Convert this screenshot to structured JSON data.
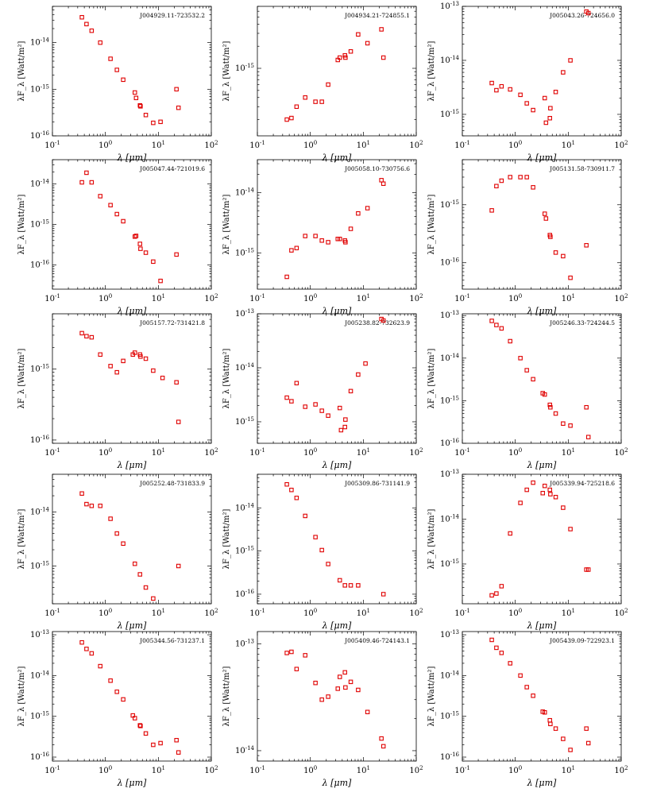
{
  "chart_data": [
    {
      "type": "scatter",
      "title": "J004929.11-723532.2",
      "xlabel": "λ [μm]",
      "ylabel": "λF_λ [Watt/m²]",
      "xscale": "log",
      "yscale": "log",
      "xlim": [
        0.1,
        100
      ],
      "ylim": [
        1e-16,
        6e-14
      ],
      "x": [
        0.36,
        0.44,
        0.55,
        0.8,
        1.25,
        1.65,
        2.17,
        3.6,
        3.8,
        4.5,
        4.6,
        5.8,
        8.0,
        11.0,
        22.0,
        24.0
      ],
      "y": [
        3.5e-14,
        2.5e-14,
        1.8e-14,
        1e-14,
        4.5e-15,
        2.6e-15,
        1.6e-15,
        8.5e-16,
        6.5e-16,
        4.5e-16,
        4.3e-16,
        2.8e-16,
        1.9e-16,
        2e-16,
        1e-15,
        4e-16
      ]
    },
    {
      "type": "scatter",
      "title": "J004934.21-724855.1",
      "xlabel": "λ [μm]",
      "ylabel": "λF_λ [Watt/m²]",
      "xscale": "log",
      "yscale": "log",
      "xlim": [
        0.1,
        100
      ],
      "ylim": [
        1.2e-16,
        7e-15
      ],
      "x": [
        0.36,
        0.44,
        0.55,
        0.8,
        1.25,
        1.65,
        2.17,
        3.3,
        3.6,
        4.5,
        4.6,
        5.8,
        8.0,
        12.0,
        22.0,
        24.0
      ],
      "y": [
        2e-16,
        2.1e-16,
        3e-16,
        4e-16,
        3.5e-16,
        3.5e-16,
        6e-16,
        1.3e-15,
        1.4e-15,
        1.5e-15,
        1.4e-15,
        1.7e-15,
        2.9e-15,
        2.2e-15,
        3.4e-15,
        1.4e-15
      ]
    },
    {
      "type": "scatter",
      "title": "J005043.26-724656.0",
      "xlabel": "λ [μm]",
      "ylabel": "λF_λ [Watt/m²]",
      "xscale": "log",
      "yscale": "log",
      "xlim": [
        0.1,
        100
      ],
      "ylim": [
        4e-16,
        1e-13
      ],
      "x": [
        0.36,
        0.44,
        0.55,
        0.8,
        1.25,
        1.65,
        2.17,
        3.6,
        3.8,
        4.5,
        4.6,
        5.8,
        8.0,
        11.0,
        22.0,
        24.0
      ],
      "y": [
        3.8e-15,
        2.8e-15,
        3.3e-15,
        2.9e-15,
        2.3e-15,
        1.6e-15,
        1.2e-15,
        2e-15,
        7e-16,
        8.5e-16,
        1.3e-15,
        2.6e-15,
        6e-15,
        1e-14,
        8e-14,
        7.5e-14
      ]
    },
    {
      "type": "scatter",
      "title": "J005047.44-721019.6",
      "xlabel": "λ [μm]",
      "ylabel": "λF_λ [Watt/m²]",
      "xscale": "log",
      "yscale": "log",
      "xlim": [
        0.1,
        100
      ],
      "ylim": [
        2.5e-17,
        4e-14
      ],
      "x": [
        0.36,
        0.44,
        0.55,
        0.8,
        1.25,
        1.65,
        2.17,
        3.6,
        3.8,
        4.5,
        4.6,
        5.8,
        8.0,
        11.0,
        22.0
      ],
      "y": [
        1.1e-14,
        1.9e-14,
        1.1e-14,
        5e-15,
        3e-15,
        1.8e-15,
        1.2e-15,
        5e-16,
        5.2e-16,
        3.3e-16,
        2.5e-16,
        2e-16,
        1.2e-16,
        4e-17,
        1.8e-16
      ]
    },
    {
      "type": "scatter",
      "title": "J005058.10-730756.6",
      "xlabel": "λ [μm]",
      "ylabel": "λF_λ [Watt/m²]",
      "xscale": "log",
      "yscale": "log",
      "xlim": [
        0.1,
        100
      ],
      "ylim": [
        2.5e-16,
        3.5e-14
      ],
      "x": [
        0.36,
        0.44,
        0.55,
        0.8,
        1.25,
        1.65,
        2.17,
        3.3,
        3.6,
        4.5,
        4.6,
        5.8,
        8.0,
        12.0,
        22.0,
        24.0
      ],
      "y": [
        4e-16,
        1.1e-15,
        1.2e-15,
        1.9e-15,
        1.9e-15,
        1.6e-15,
        1.5e-15,
        1.7e-15,
        1.7e-15,
        1.6e-15,
        1.5e-15,
        2.5e-15,
        4.5e-15,
        5.5e-15,
        1.6e-14,
        1.4e-14
      ]
    },
    {
      "type": "scatter",
      "title": "J005131.58-730911.7",
      "xlabel": "λ [μm]",
      "ylabel": "λF_λ [Watt/m²]",
      "xscale": "log",
      "yscale": "log",
      "xlim": [
        0.1,
        100
      ],
      "ylim": [
        3.5e-17,
        6e-15
      ],
      "x": [
        0.36,
        0.44,
        0.55,
        0.8,
        1.25,
        1.65,
        2.17,
        3.6,
        3.8,
        4.5,
        4.6,
        5.8,
        8.0,
        11.0,
        22.0
      ],
      "y": [
        8e-16,
        2.1e-15,
        2.6e-15,
        3e-15,
        3e-15,
        3e-15,
        2e-15,
        7e-16,
        5.8e-16,
        3e-16,
        2.8e-16,
        1.5e-16,
        1.3e-16,
        5.5e-17,
        2e-16
      ]
    },
    {
      "type": "scatter",
      "title": "J005157.72-731421.8",
      "xlabel": "λ [μm]",
      "ylabel": "λF_λ [Watt/m²]",
      "xscale": "log",
      "yscale": "log",
      "xlim": [
        0.1,
        100
      ],
      "ylim": [
        9e-17,
        6e-15
      ],
      "x": [
        0.36,
        0.44,
        0.55,
        0.8,
        1.25,
        1.65,
        2.17,
        3.3,
        3.6,
        4.5,
        4.6,
        5.8,
        8.0,
        12.0,
        22.0,
        24.0
      ],
      "y": [
        3.2e-15,
        2.9e-15,
        2.8e-15,
        1.6e-15,
        1.1e-15,
        9e-16,
        1.3e-15,
        1.6e-15,
        1.7e-15,
        1.6e-15,
        1.5e-15,
        1.4e-15,
        9.5e-16,
        7.5e-16,
        6.5e-16,
        1.8e-16
      ]
    },
    {
      "type": "scatter",
      "title": "J005238.82-732623.9",
      "xlabel": "λ [μm]",
      "ylabel": "λF_λ [Watt/m²]",
      "xscale": "log",
      "yscale": "log",
      "xlim": [
        0.1,
        100
      ],
      "ylim": [
        4e-16,
        1e-13
      ],
      "x": [
        0.36,
        0.44,
        0.55,
        0.8,
        1.25,
        1.65,
        2.17,
        3.6,
        3.8,
        4.5,
        4.6,
        5.8,
        8.0,
        11.0,
        22.0,
        24.0
      ],
      "y": [
        2.8e-15,
        2.4e-15,
        5.2e-15,
        1.9e-15,
        2.1e-15,
        1.6e-15,
        1.3e-15,
        1.8e-15,
        7e-16,
        8e-16,
        1.1e-15,
        3.7e-15,
        7.5e-15,
        1.2e-14,
        8e-14,
        7.5e-14
      ]
    },
    {
      "type": "scatter",
      "title": "J005246.33-724244.5",
      "xlabel": "λ [μm]",
      "ylabel": "λF_λ [Watt/m²]",
      "xscale": "log",
      "yscale": "log",
      "xlim": [
        0.1,
        100
      ],
      "ylim": [
        1e-16,
        1.1e-13
      ],
      "x": [
        0.36,
        0.44,
        0.55,
        0.8,
        1.25,
        1.65,
        2.17,
        3.3,
        3.6,
        4.5,
        4.6,
        5.8,
        8.0,
        11.0,
        22.0,
        24.0
      ],
      "y": [
        7.5e-14,
        6e-14,
        5e-14,
        2.5e-14,
        1e-14,
        5.2e-15,
        3.2e-15,
        1.5e-15,
        1.4e-15,
        8e-16,
        7e-16,
        5e-16,
        2.9e-16,
        2.6e-16,
        7e-16,
        1.4e-16
      ]
    },
    {
      "type": "scatter",
      "title": "J005252.48-731833.9",
      "xlabel": "λ [μm]",
      "ylabel": "λF_λ [Watt/m²]",
      "xscale": "log",
      "yscale": "log",
      "xlim": [
        0.1,
        100
      ],
      "ylim": [
        2e-16,
        5e-14
      ],
      "x": [
        0.36,
        0.44,
        0.55,
        0.8,
        1.25,
        1.65,
        2.17,
        3.6,
        4.5,
        5.8,
        8.0,
        24.0
      ],
      "y": [
        2.2e-14,
        1.4e-14,
        1.3e-14,
        1.3e-14,
        7.5e-15,
        4e-15,
        2.6e-15,
        1.1e-15,
        7e-16,
        4e-16,
        2.5e-16,
        1e-15
      ]
    },
    {
      "type": "scatter",
      "title": "J005309.86-731141.9",
      "xlabel": "λ [μm]",
      "ylabel": "λF_λ [Watt/m²]",
      "xscale": "log",
      "yscale": "log",
      "xlim": [
        0.1,
        100
      ],
      "ylim": [
        6e-17,
        6e-14
      ],
      "x": [
        0.36,
        0.44,
        0.55,
        0.8,
        1.25,
        1.65,
        2.17,
        3.6,
        4.5,
        5.8,
        8.0,
        24.0
      ],
      "y": [
        3.5e-14,
        2.6e-14,
        1.7e-14,
        6.5e-15,
        2.1e-15,
        1.05e-15,
        5e-16,
        2.1e-16,
        1.6e-16,
        1.6e-16,
        1.6e-16,
        1e-16
      ]
    },
    {
      "type": "scatter",
      "title": "J005339.94-725218.6",
      "xlabel": "λ [μm]",
      "ylabel": "λF_λ [Watt/m²]",
      "xscale": "log",
      "yscale": "log",
      "xlim": [
        0.1,
        100
      ],
      "ylim": [
        1.3e-16,
        1e-13
      ],
      "x": [
        0.36,
        0.44,
        0.55,
        0.8,
        1.25,
        1.65,
        2.17,
        3.3,
        3.6,
        4.5,
        4.6,
        5.8,
        8.0,
        11.0,
        22.0,
        24.0
      ],
      "y": [
        2e-16,
        2.2e-16,
        3.2e-16,
        4.8e-15,
        2.3e-14,
        4.5e-14,
        6.5e-14,
        3.8e-14,
        5.5e-14,
        4.5e-14,
        3.6e-14,
        3.1e-14,
        1.8e-14,
        6e-15,
        7.5e-16,
        7.5e-16
      ]
    },
    {
      "type": "scatter",
      "title": "J005344.56-731237.1",
      "xlabel": "λ [μm]",
      "ylabel": "λF_λ [Watt/m²]",
      "xscale": "log",
      "yscale": "log",
      "xlim": [
        0.1,
        100
      ],
      "ylim": [
        8e-17,
        1.2e-13
      ],
      "x": [
        0.36,
        0.44,
        0.55,
        0.8,
        1.25,
        1.65,
        2.17,
        3.3,
        3.6,
        4.5,
        4.6,
        5.8,
        8.0,
        11.0,
        22.0,
        24.0
      ],
      "y": [
        6.5e-14,
        4.5e-14,
        3.5e-14,
        1.7e-14,
        7.5e-15,
        4e-15,
        2.6e-15,
        1.05e-15,
        9e-16,
        6e-16,
        5.8e-16,
        3.8e-16,
        2e-16,
        2.2e-16,
        2.6e-16,
        1.3e-16
      ]
    },
    {
      "type": "scatter",
      "title": "J005409.46-724143.1",
      "xlabel": "λ [μm]",
      "ylabel": "λF_λ [Watt/m²]",
      "xscale": "log",
      "yscale": "log",
      "xlim": [
        0.1,
        100
      ],
      "ylim": [
        8e-15,
        1.3e-13
      ],
      "x": [
        0.36,
        0.44,
        0.55,
        0.8,
        1.25,
        1.65,
        2.17,
        3.3,
        3.6,
        4.5,
        4.6,
        5.8,
        8.0,
        12.0,
        22.0,
        24.0
      ],
      "y": [
        8.2e-14,
        8.4e-14,
        5.8e-14,
        7.8e-14,
        4.3e-14,
        3e-14,
        3.2e-14,
        3.8e-14,
        4.9e-14,
        5.4e-14,
        3.9e-14,
        4.4e-14,
        3.7e-14,
        2.3e-14,
        1.3e-14,
        1.1e-14
      ]
    },
    {
      "type": "scatter",
      "title": "J005439.09-722923.1",
      "xlabel": "λ [μm]",
      "ylabel": "λF_λ [Watt/m²]",
      "xscale": "log",
      "yscale": "log",
      "xlim": [
        0.1,
        100
      ],
      "ylim": [
        8e-17,
        1.2e-13
      ],
      "x": [
        0.36,
        0.44,
        0.55,
        0.8,
        1.25,
        1.65,
        2.17,
        3.3,
        3.6,
        4.5,
        4.6,
        5.8,
        8.0,
        11.0,
        22.0,
        24.0
      ],
      "y": [
        7.5e-14,
        4.8e-14,
        3.6e-14,
        2e-14,
        1e-14,
        5.2e-15,
        3.2e-15,
        1.3e-15,
        1.25e-15,
        8e-16,
        6.5e-16,
        5e-16,
        2.8e-16,
        1.5e-16,
        5e-16,
        2.2e-16
      ]
    }
  ]
}
